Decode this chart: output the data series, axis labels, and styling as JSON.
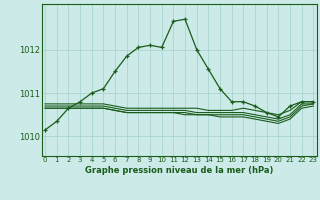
{
  "title": "Graphe pression niveau de la mer (hPa)",
  "bg_color": "#cceae8",
  "grid_color": "#aad4d0",
  "line_color": "#1a5c1a",
  "x_ticks": [
    0,
    1,
    2,
    3,
    4,
    5,
    6,
    7,
    8,
    9,
    10,
    11,
    12,
    13,
    14,
    15,
    16,
    17,
    18,
    19,
    20,
    21,
    22,
    23
  ],
  "y_ticks": [
    1010,
    1011,
    1012
  ],
  "ylim": [
    1009.55,
    1013.05
  ],
  "xlim": [
    -0.3,
    23.3
  ],
  "main_series": [
    1010.15,
    1010.35,
    1010.65,
    1010.8,
    1011.0,
    1011.1,
    1011.5,
    1011.85,
    1012.05,
    1012.1,
    1012.05,
    1012.65,
    1012.7,
    1012.0,
    1011.55,
    1011.1,
    1010.8,
    1010.8,
    1010.7,
    1010.55,
    1010.45,
    1010.7,
    1010.8,
    1010.8
  ],
  "flat_series": [
    [
      1010.75,
      1010.75,
      1010.75,
      1010.75,
      1010.75,
      1010.75,
      1010.7,
      1010.65,
      1010.65,
      1010.65,
      1010.65,
      1010.65,
      1010.65,
      1010.65,
      1010.6,
      1010.6,
      1010.6,
      1010.65,
      1010.6,
      1010.55,
      1010.5,
      1010.6,
      1010.8,
      1010.8
    ],
    [
      1010.65,
      1010.65,
      1010.65,
      1010.65,
      1010.65,
      1010.65,
      1010.6,
      1010.55,
      1010.55,
      1010.55,
      1010.55,
      1010.55,
      1010.55,
      1010.5,
      1010.5,
      1010.5,
      1010.5,
      1010.5,
      1010.45,
      1010.4,
      1010.35,
      1010.45,
      1010.7,
      1010.75
    ],
    [
      1010.65,
      1010.65,
      1010.65,
      1010.65,
      1010.65,
      1010.65,
      1010.6,
      1010.55,
      1010.55,
      1010.55,
      1010.55,
      1010.55,
      1010.5,
      1010.5,
      1010.5,
      1010.45,
      1010.45,
      1010.45,
      1010.4,
      1010.35,
      1010.3,
      1010.4,
      1010.65,
      1010.7
    ],
    [
      1010.7,
      1010.7,
      1010.7,
      1010.7,
      1010.7,
      1010.7,
      1010.65,
      1010.6,
      1010.6,
      1010.6,
      1010.6,
      1010.6,
      1010.6,
      1010.55,
      1010.55,
      1010.55,
      1010.55,
      1010.55,
      1010.5,
      1010.45,
      1010.4,
      1010.5,
      1010.75,
      1010.75
    ]
  ]
}
